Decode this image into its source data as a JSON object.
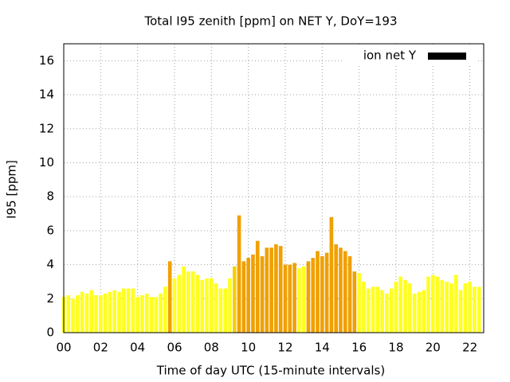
{
  "chart_data": {
    "type": "bar",
    "title": "Total I95 zenith [ppm] on NET Y, DoY=193",
    "x_label": "Time of day UTC (15-minute intervals)",
    "y_label": "I95 [ppm]",
    "legend": "top-right",
    "grid": true,
    "xlim": [
      0,
      22.75
    ],
    "ylim": [
      0,
      17
    ],
    "yticks": [
      0,
      2,
      4,
      6,
      8,
      10,
      12,
      14,
      16
    ],
    "xticks": [
      {
        "value": 0,
        "label": "00"
      },
      {
        "value": 2,
        "label": "02"
      },
      {
        "value": 4,
        "label": "04"
      },
      {
        "value": 6,
        "label": "06"
      },
      {
        "value": 8,
        "label": "08"
      },
      {
        "value": 10,
        "label": "10"
      },
      {
        "value": 12,
        "label": "12"
      },
      {
        "value": 14,
        "label": "14"
      },
      {
        "value": 16,
        "label": "16"
      },
      {
        "value": 18,
        "label": "18"
      },
      {
        "value": 20,
        "label": "20"
      },
      {
        "value": 22,
        "label": "22"
      }
    ],
    "series": [
      {
        "name": "ion net Y",
        "color": "#000000",
        "x": [
          0,
          0.25,
          0.5,
          0.75,
          1,
          1.25,
          1.5,
          1.75,
          2,
          2.25,
          2.5,
          2.75,
          3,
          3.25,
          3.5,
          3.75,
          4,
          4.25,
          4.5,
          4.75,
          5,
          5.25,
          5.5,
          5.75,
          6,
          6.25,
          6.5,
          6.75,
          7,
          7.25,
          7.5,
          7.75,
          8,
          8.25,
          8.5,
          8.75,
          9,
          9.25,
          9.5,
          9.75,
          10,
          10.25,
          10.5,
          10.75,
          11,
          11.25,
          11.5,
          11.75,
          12,
          12.25,
          12.5,
          12.75,
          13,
          13.25,
          13.5,
          13.75,
          14,
          14.25,
          14.5,
          14.75,
          15,
          15.25,
          15.5,
          15.75,
          16,
          16.25,
          16.5,
          16.75,
          17,
          17.25,
          17.5,
          17.75,
          18,
          18.25,
          18.5,
          18.75,
          19,
          19.25,
          19.5,
          19.75,
          20,
          20.25,
          20.5,
          20.75,
          21,
          21.25,
          21.5,
          21.75,
          22,
          22.25,
          22.5
        ],
        "values": [
          2.1,
          2.2,
          2.0,
          2.2,
          2.4,
          2.3,
          2.5,
          2.2,
          2.2,
          2.3,
          2.4,
          2.5,
          2.4,
          2.6,
          2.6,
          2.6,
          2.1,
          2.2,
          2.3,
          2.1,
          2.1,
          2.3,
          2.7,
          4.2,
          3.2,
          3.4,
          3.9,
          3.6,
          3.6,
          3.4,
          3.1,
          3.2,
          3.2,
          2.9,
          2.6,
          2.6,
          3.2,
          3.9,
          6.9,
          4.2,
          4.4,
          4.6,
          5.4,
          4.5,
          5.0,
          5.0,
          5.2,
          5.1,
          4.0,
          4.0,
          4.1,
          3.8,
          3.9,
          4.2,
          4.4,
          4.8,
          4.5,
          4.7,
          6.8,
          5.2,
          5.0,
          4.8,
          4.5,
          3.6,
          3.5,
          3.0,
          2.6,
          2.7,
          2.7,
          2.5,
          2.3,
          2.6,
          3.0,
          3.3,
          3.1,
          2.9,
          2.3,
          2.4,
          2.5,
          3.3,
          3.4,
          3.3,
          3.1,
          3.0,
          2.9,
          3.4,
          2.5,
          2.9,
          3.0,
          2.7,
          2.7
        ],
        "colors": [
          "#ffff20",
          "#ffff20",
          "#ffff20",
          "#ffff20",
          "#ffff20",
          "#ffff20",
          "#ffff20",
          "#ffff20",
          "#ffff20",
          "#ffff20",
          "#ffff20",
          "#ffff20",
          "#ffff20",
          "#ffff20",
          "#ffff20",
          "#ffff20",
          "#ffff20",
          "#ffff20",
          "#ffff20",
          "#ffff20",
          "#ffff20",
          "#ffff20",
          "#ffff20",
          "#f0a000",
          "#ffff20",
          "#ffff20",
          "#ffff20",
          "#ffff20",
          "#ffff20",
          "#ffff20",
          "#ffff20",
          "#ffff20",
          "#ffff20",
          "#ffff20",
          "#ffff20",
          "#ffff20",
          "#ffff20",
          "#f5d000",
          "#f0a000",
          "#f0a000",
          "#f0a000",
          "#f0a000",
          "#f0a000",
          "#f0a000",
          "#f0a000",
          "#f0a000",
          "#f0a000",
          "#f0a000",
          "#f0a000",
          "#f0a000",
          "#f0a000",
          "#ffff20",
          "#ffff20",
          "#f0a000",
          "#f0a000",
          "#f0a000",
          "#f0a000",
          "#f0a000",
          "#f0a000",
          "#f0a000",
          "#f0a000",
          "#f0a000",
          "#f0a000",
          "#f0a000",
          "#ffff20",
          "#ffff20",
          "#ffff20",
          "#ffff20",
          "#ffff20",
          "#ffff20",
          "#ffff20",
          "#ffff20",
          "#ffff20",
          "#ffff20",
          "#ffff20",
          "#ffff20",
          "#ffff20",
          "#ffff20",
          "#ffff20",
          "#ffff20",
          "#ffff20",
          "#ffff20",
          "#ffff20",
          "#ffff20",
          "#ffff20",
          "#ffff20",
          "#ffff20",
          "#ffff20",
          "#ffff20",
          "#ffff20",
          "#ffff20"
        ]
      }
    ]
  }
}
